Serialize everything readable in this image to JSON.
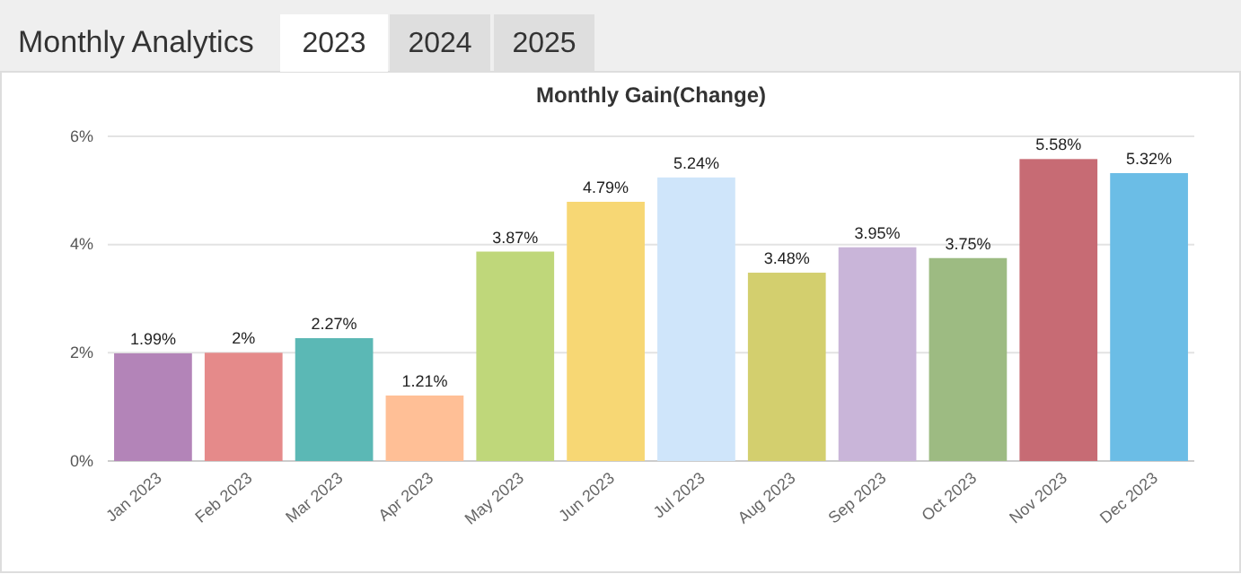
{
  "chart_data": {
    "type": "bar",
    "title": "Monthly Gain(Change)",
    "annotations": [
      "Monthly Analytics",
      "2023",
      "2024",
      "2025"
    ],
    "categories": [
      "Jan 2023",
      "Feb 2023",
      "Mar 2023",
      "Apr 2023",
      "May 2023",
      "Jun 2023",
      "Jul 2023",
      "Aug 2023",
      "Sep 2023",
      "Oct 2023",
      "Nov 2023",
      "Dec 2023"
    ],
    "values": [
      1.99,
      2,
      2.27,
      1.21,
      3.87,
      4.79,
      5.24,
      3.48,
      3.95,
      3.75,
      5.58,
      5.32
    ],
    "colors": [
      "#b384b8",
      "#e58a8a",
      "#5bb8b5",
      "#ffbf96",
      "#bfd77a",
      "#f7d774",
      "#cfe5fa",
      "#d3cf6e",
      "#c9b5d9",
      "#9dbb82",
      "#c76b74",
      "#6bbde6"
    ],
    "value_labels": [
      "1.99%",
      "2%",
      "2.27%",
      "1.21%",
      "3.87%",
      "4.79%",
      "5.24%",
      "3.48%",
      "3.95%",
      "3.75%",
      "5.58%",
      "5.32%"
    ],
    "ylim": [
      0,
      6
    ],
    "yticks": [
      {
        "value": 0,
        "label": "0%"
      },
      {
        "value": 2,
        "label": "2%"
      },
      {
        "value": 4,
        "label": "4%"
      },
      {
        "value": 6,
        "label": "6%"
      }
    ],
    "grid": "y"
  }
}
